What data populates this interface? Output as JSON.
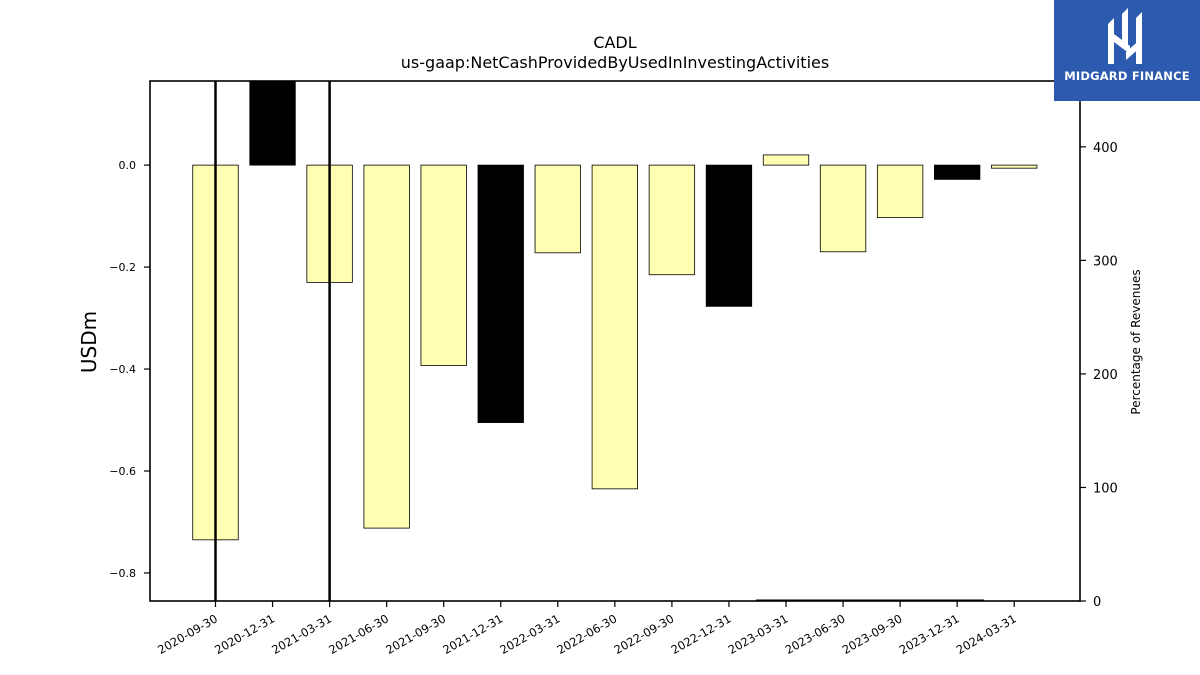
{
  "chart_data": {
    "type": "bar",
    "title": "CADL",
    "subtitle": "us-gaap:NetCashProvidedByUsedInInvestingActivities",
    "ylabel": "USDm",
    "y2label": "Percentage of Revenues",
    "categories": [
      "2020-09-30",
      "2020-12-31",
      "2021-03-31",
      "2021-06-30",
      "2021-09-30",
      "2021-12-31",
      "2022-03-31",
      "2022-06-30",
      "2022-09-30",
      "2022-12-31",
      "2023-03-31",
      "2023-06-30",
      "2023-09-30",
      "2023-12-31",
      "2024-03-31"
    ],
    "values": [
      -0.735,
      0.165,
      -0.23,
      -0.712,
      -0.393,
      -0.505,
      -0.172,
      -0.635,
      -0.215,
      -0.277,
      0.02,
      -0.17,
      -0.103,
      -0.028,
      -0.006
    ],
    "bar_colors": [
      "#ffffb3",
      "#000000",
      "#ffffb3",
      "#ffffb3",
      "#ffffb3",
      "#000000",
      "#ffffb3",
      "#ffffb3",
      "#ffffb3",
      "#000000",
      "#ffffb3",
      "#ffffb3",
      "#ffffb3",
      "#000000",
      "#ffffb3"
    ],
    "ylim": [
      -0.855,
      0.165
    ],
    "yticks": [
      0.0,
      -0.2,
      -0.4,
      -0.6,
      -0.8
    ],
    "ytick_labels": [
      "0.0",
      "−0.2",
      "−0.4",
      "−0.6",
      "−0.8"
    ],
    "y2lim": [
      0,
      458
    ],
    "y2ticks": [
      0,
      100,
      200,
      300,
      400
    ],
    "percentage_series": [
      {
        "x": "2020-09-30",
        "value": 458
      },
      {
        "x": "2021-03-31",
        "value": 458
      },
      {
        "x": "2023-03-31",
        "value": 0.5
      },
      {
        "x": "2024-03-31",
        "value": 0.5
      }
    ],
    "grid": false,
    "legend": "none"
  },
  "logo": {
    "text": "MIDGARD FINANCE",
    "background": "#2b5aae"
  }
}
